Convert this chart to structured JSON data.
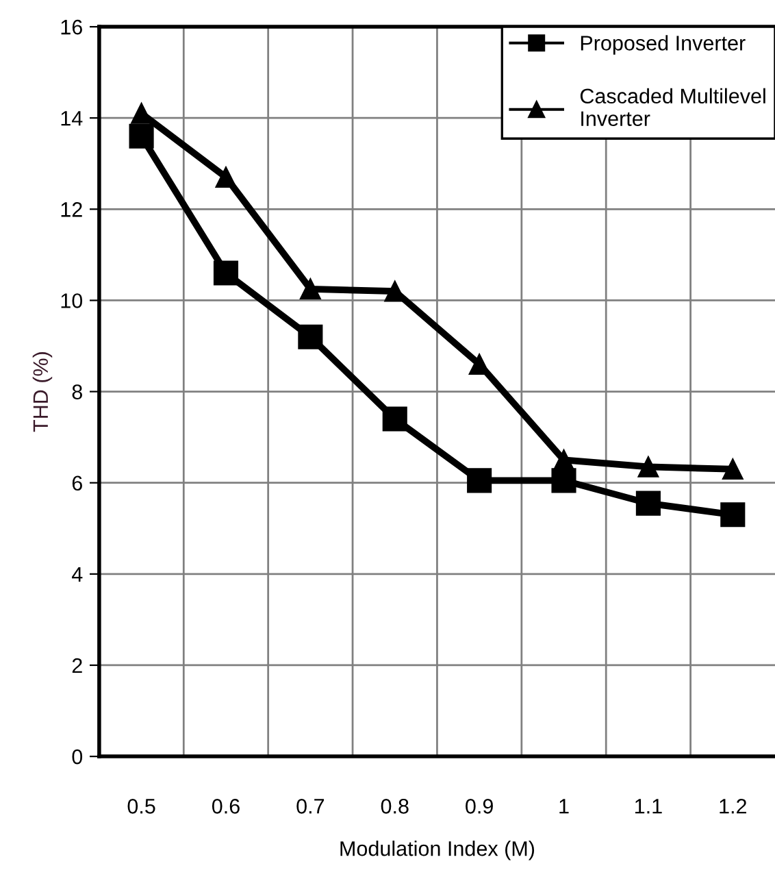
{
  "chart_data": {
    "type": "line",
    "xlabel": "Modulation Index (M)",
    "ylabel": "THD (%)",
    "categories": [
      "0.5",
      "0.6",
      "0.7",
      "0.8",
      "0.9",
      "1",
      "1.1",
      "1.2"
    ],
    "series": [
      {
        "name": "Proposed Inverter",
        "color": "#000000",
        "marker": "square",
        "values": [
          13.6,
          10.6,
          9.2,
          7.4,
          6.05,
          6.05,
          5.55,
          5.3
        ]
      },
      {
        "name": "Cascaded Multilevel\nInverter",
        "color": "#000000",
        "marker": "triangle",
        "values": [
          14.1,
          12.7,
          10.25,
          10.2,
          8.6,
          6.5,
          6.35,
          6.3
        ]
      }
    ],
    "ylim": [
      0,
      16
    ],
    "yticks": [
      0,
      2,
      4,
      6,
      8,
      10,
      12,
      14,
      16
    ],
    "grid": true,
    "legend": "top right",
    "line_style": "solid"
  }
}
